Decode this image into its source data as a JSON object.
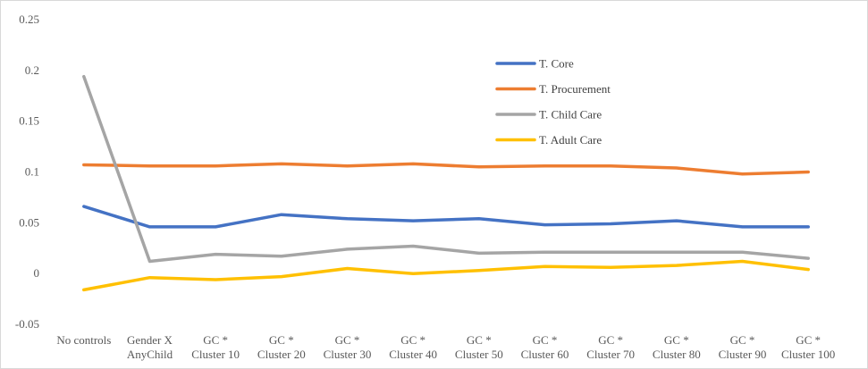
{
  "chart_data": {
    "type": "line",
    "categories": [
      [
        "No controls"
      ],
      [
        "Gender X",
        "AnyChild"
      ],
      [
        "GC *",
        "Cluster 10"
      ],
      [
        "GC *",
        "Cluster 20"
      ],
      [
        "GC *",
        "Cluster 30"
      ],
      [
        "GC *",
        "Cluster 40"
      ],
      [
        "GC *",
        "Cluster 50"
      ],
      [
        "GC *",
        "Cluster 60"
      ],
      [
        "GC *",
        "Cluster 70"
      ],
      [
        "GC *",
        "Cluster 80"
      ],
      [
        "GC *",
        "Cluster 90"
      ],
      [
        "GC *",
        "Cluster 100"
      ]
    ],
    "ylim": [
      -0.05,
      0.25
    ],
    "yticks": [
      -0.05,
      0,
      0.05,
      0.1,
      0.15,
      0.2,
      0.25
    ],
    "ytick_labels": [
      "-0.05",
      "0",
      "0.05",
      "0.1",
      "0.15",
      "0.2",
      "0.25"
    ],
    "grid": false,
    "legend_position": "upper-right inside plot",
    "series": [
      {
        "name": "T. Core",
        "color": "#4472C4",
        "values": [
          0.066,
          0.046,
          0.046,
          0.058,
          0.054,
          0.052,
          0.054,
          0.048,
          0.049,
          0.052,
          0.046,
          0.046
        ]
      },
      {
        "name": "T. Procurement",
        "color": "#ED7D31",
        "values": [
          0.107,
          0.106,
          0.106,
          0.108,
          0.106,
          0.108,
          0.105,
          0.106,
          0.106,
          0.104,
          0.098,
          0.1
        ]
      },
      {
        "name": "T. Child Care",
        "color": "#A5A5A5",
        "values": [
          0.194,
          0.012,
          0.019,
          0.017,
          0.024,
          0.027,
          0.02,
          0.021,
          0.021,
          0.021,
          0.021,
          0.015
        ]
      },
      {
        "name": "T. Adult Care",
        "color": "#FFC000",
        "values": [
          -0.016,
          -0.004,
          -0.006,
          -0.003,
          0.005,
          0.0,
          0.003,
          0.007,
          0.006,
          0.008,
          0.012,
          0.004
        ]
      }
    ]
  }
}
